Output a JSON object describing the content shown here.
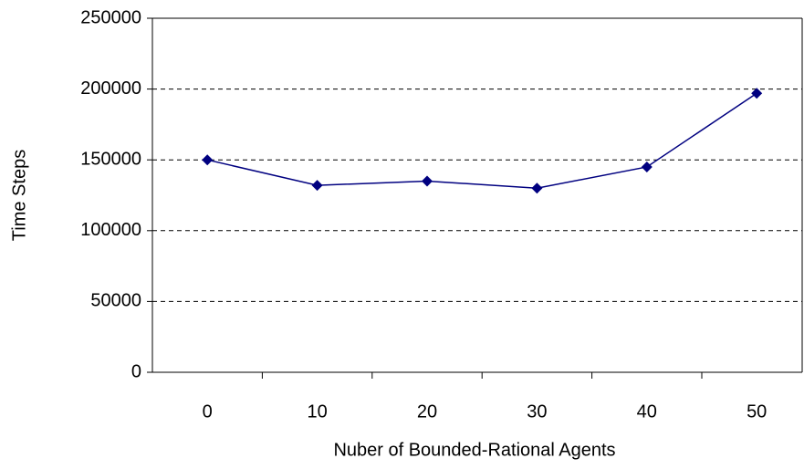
{
  "chart_data": {
    "type": "line",
    "x_label": "Nuber of Bounded-Rational Agents",
    "y_label": "Time Steps",
    "categories": [
      "0",
      "10",
      "20",
      "30",
      "40",
      "50"
    ],
    "values": [
      150000,
      132000,
      135000,
      130000,
      145000,
      197000
    ],
    "color": "#000080",
    "ylim": [
      0,
      250000
    ],
    "yticks": [
      0,
      50000,
      100000,
      150000,
      200000,
      250000
    ],
    "grid": true
  }
}
